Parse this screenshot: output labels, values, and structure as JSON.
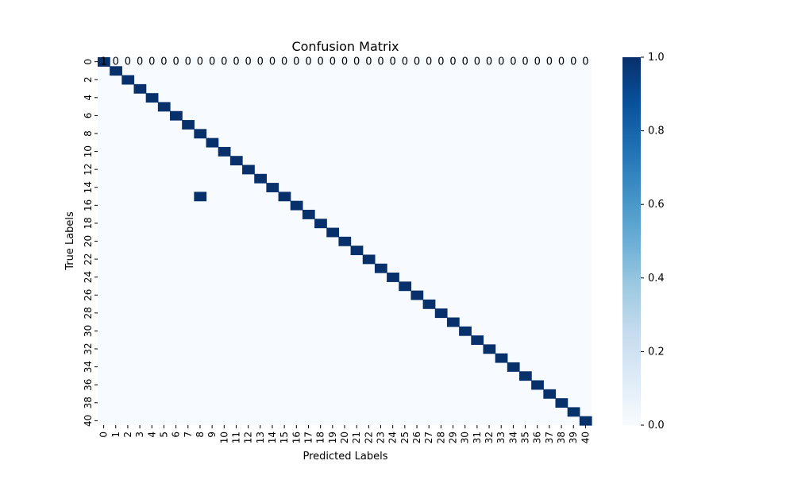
{
  "chart_data": {
    "type": "heatmap",
    "title": "Confusion Matrix",
    "xlabel": "Predicted Labels",
    "ylabel": "True Labels",
    "x_labels": [
      0,
      1,
      2,
      3,
      4,
      5,
      6,
      7,
      8,
      9,
      10,
      11,
      12,
      13,
      14,
      15,
      16,
      17,
      18,
      19,
      20,
      21,
      22,
      23,
      24,
      25,
      26,
      27,
      28,
      29,
      30,
      31,
      32,
      33,
      34,
      35,
      36,
      37,
      38,
      39,
      40
    ],
    "y_labels": [
      0,
      2,
      4,
      6,
      8,
      10,
      12,
      14,
      16,
      18,
      20,
      22,
      24,
      26,
      28,
      30,
      32,
      34,
      36,
      38,
      40
    ],
    "rows": 41,
    "cols": 41,
    "cells_value_1": [
      [
        0,
        0
      ],
      [
        1,
        1
      ],
      [
        2,
        2
      ],
      [
        3,
        3
      ],
      [
        4,
        4
      ],
      [
        5,
        5
      ],
      [
        6,
        6
      ],
      [
        7,
        7
      ],
      [
        8,
        8
      ],
      [
        9,
        9
      ],
      [
        10,
        10
      ],
      [
        11,
        11
      ],
      [
        12,
        12
      ],
      [
        13,
        13
      ],
      [
        14,
        14
      ],
      [
        15,
        8
      ],
      [
        15,
        15
      ],
      [
        16,
        16
      ],
      [
        17,
        17
      ],
      [
        18,
        18
      ],
      [
        19,
        19
      ],
      [
        20,
        20
      ],
      [
        21,
        21
      ],
      [
        22,
        22
      ],
      [
        23,
        23
      ],
      [
        24,
        24
      ],
      [
        25,
        25
      ],
      [
        26,
        26
      ],
      [
        27,
        27
      ],
      [
        28,
        28
      ],
      [
        29,
        29
      ],
      [
        30,
        30
      ],
      [
        31,
        31
      ],
      [
        32,
        32
      ],
      [
        33,
        33
      ],
      [
        34,
        34
      ],
      [
        35,
        35
      ],
      [
        36,
        36
      ],
      [
        37,
        37
      ],
      [
        38,
        38
      ],
      [
        39,
        39
      ],
      [
        40,
        40
      ]
    ],
    "annotations": {
      "row": 0,
      "values": [
        "1",
        "0",
        "0",
        "0",
        "0",
        "0",
        "0",
        "0",
        "0",
        "0",
        "0",
        "0",
        "0",
        "0",
        "0",
        "0",
        "0",
        "0",
        "0",
        "0",
        "0",
        "0",
        "0",
        "0",
        "0",
        "0",
        "0",
        "0",
        "0",
        "0",
        "0",
        "0",
        "0",
        "0",
        "0",
        "0",
        "0",
        "0",
        "0",
        "0",
        "0"
      ]
    },
    "colorbar": {
      "min": 0.0,
      "max": 1.0,
      "ticks": [
        "0.0",
        "0.2",
        "0.4",
        "0.6",
        "0.8",
        "1.0"
      ],
      "colormap": "Blues",
      "color_low": "#f7fbff",
      "color_high": "#08306b"
    }
  }
}
